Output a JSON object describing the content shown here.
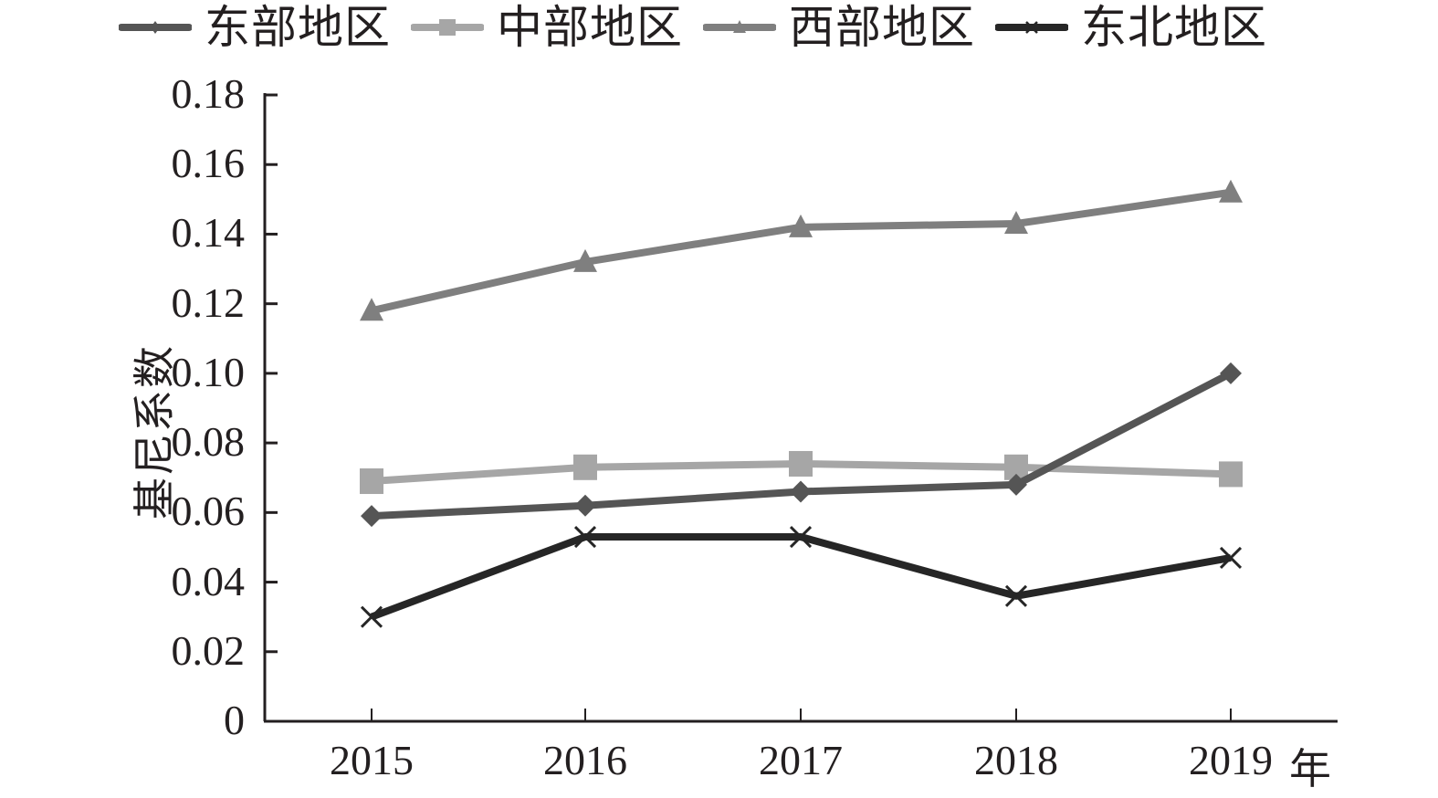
{
  "chart_data": {
    "type": "line",
    "title": "",
    "xlabel": "年",
    "ylabel": "基尼系数",
    "ylim": [
      0,
      0.18
    ],
    "yticks": [
      "0",
      "0.02",
      "0.04",
      "0.06",
      "0.08",
      "0.10",
      "0.12",
      "0.14",
      "0.16",
      "0.18"
    ],
    "categories": [
      "2015",
      "2016",
      "2017",
      "2018",
      "2019"
    ],
    "grid": false,
    "legend_position": "top",
    "series": [
      {
        "name": "东部地区",
        "marker": "diamond",
        "color": "#555555",
        "values": [
          0.059,
          0.062,
          0.066,
          0.068,
          0.1
        ]
      },
      {
        "name": "中部地区",
        "marker": "square",
        "color": "#a6a6a6",
        "values": [
          0.069,
          0.073,
          0.074,
          0.073,
          0.071
        ]
      },
      {
        "name": "西部地区",
        "marker": "triangle",
        "color": "#7f7f7f",
        "values": [
          0.118,
          0.132,
          0.142,
          0.143,
          0.152
        ]
      },
      {
        "name": "东北地区",
        "marker": "x",
        "color": "#262626",
        "values": [
          0.03,
          0.053,
          0.053,
          0.036,
          0.047
        ]
      }
    ]
  },
  "legend": {
    "items": [
      {
        "label": "东部地区"
      },
      {
        "label": "中部地区"
      },
      {
        "label": "西部地区"
      },
      {
        "label": "东北地区"
      }
    ]
  },
  "axes": {
    "y_title": "基尼系数",
    "x_unit": "年"
  }
}
